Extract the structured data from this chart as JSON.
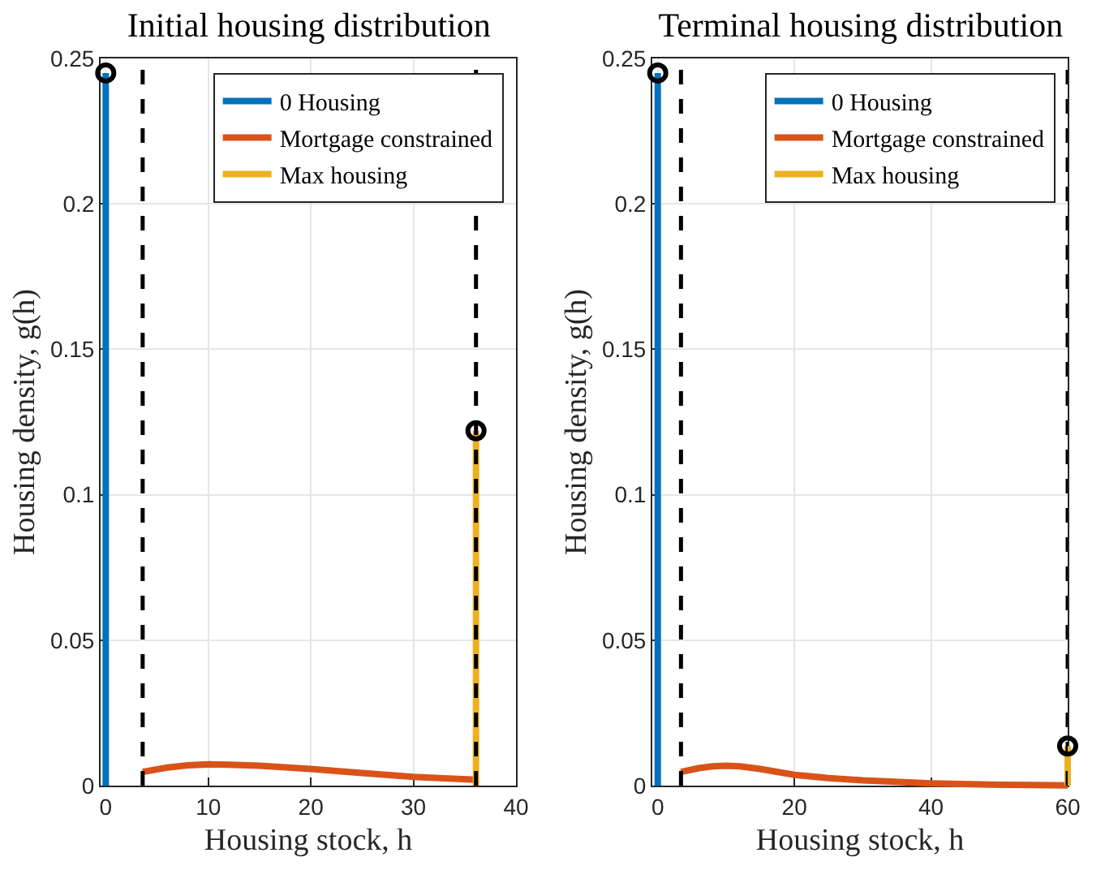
{
  "chart_data": [
    {
      "type": "line",
      "title": "Initial housing distribution",
      "xlabel": "Housing stock, h",
      "ylabel": "Housing density, g(h)",
      "xlim": [
        -0.5,
        40
      ],
      "xticks": [
        0,
        10,
        20,
        30,
        40
      ],
      "ylim": [
        0,
        0.25
      ],
      "yticks": [
        0,
        0.05,
        0.1,
        0.15,
        0.2,
        0.25
      ],
      "grid": true,
      "legend": "top right",
      "series": [
        {
          "name": "0 Housing",
          "color": "#0072bd",
          "type": "line",
          "marker": "none",
          "x": [
            0,
            0
          ],
          "values": [
            0,
            0.245
          ]
        },
        {
          "name": "Mortgage constrained",
          "color": "#d95319",
          "type": "line",
          "marker": "none",
          "x": [
            3.6,
            6,
            8,
            10,
            12,
            15,
            20,
            25,
            30,
            33,
            36.1
          ],
          "values": [
            0.0047,
            0.0062,
            0.007,
            0.0073,
            0.0072,
            0.0068,
            0.0057,
            0.0043,
            0.003,
            0.0025,
            0.002
          ]
        },
        {
          "name": "Max housing",
          "color": "#edb120",
          "type": "line",
          "marker": "none",
          "x": [
            36.1,
            36.1
          ],
          "values": [
            0,
            0.122
          ]
        },
        {
          "color": "#000000",
          "type": "scatter",
          "marker": "circle",
          "x": [
            0,
            36.1
          ],
          "values": [
            0.245,
            0.122
          ]
        }
      ],
      "ref_lines": [
        {
          "axis": "x",
          "value": 3.6,
          "color": "#000000",
          "line_style": "dashed"
        },
        {
          "axis": "x",
          "value": 36.1,
          "color": "#000000",
          "line_style": "dashed"
        }
      ]
    },
    {
      "type": "line",
      "title": "Terminal housing distribution",
      "xlabel": "Housing stock, h",
      "ylabel": "Housing density, g(h)",
      "xlim": [
        -0.8,
        60
      ],
      "xticks": [
        0,
        20,
        40,
        60
      ],
      "ylim": [
        0,
        0.25
      ],
      "yticks": [
        0,
        0.05,
        0.1,
        0.15,
        0.2,
        0.25
      ],
      "grid": true,
      "legend": "top right",
      "series": [
        {
          "name": "0 Housing",
          "color": "#0072bd",
          "type": "line",
          "marker": "none",
          "x": [
            0,
            0
          ],
          "values": [
            0,
            0.245
          ]
        },
        {
          "name": "Mortgage constrained",
          "color": "#d95319",
          "type": "line",
          "marker": "none",
          "x": [
            3.4,
            6,
            8,
            10,
            12,
            15,
            20,
            25,
            30,
            40,
            50,
            60
          ],
          "values": [
            0.0047,
            0.006,
            0.0066,
            0.0068,
            0.0066,
            0.0057,
            0.0037,
            0.0026,
            0.0018,
            0.0008,
            0.0003,
            0.0001
          ]
        },
        {
          "name": "Max housing",
          "color": "#edb120",
          "type": "line",
          "marker": "none",
          "x": [
            60,
            60
          ],
          "values": [
            0,
            0.0136
          ]
        },
        {
          "color": "#000000",
          "type": "scatter",
          "marker": "circle",
          "x": [
            0,
            60
          ],
          "values": [
            0.245,
            0.0136
          ]
        }
      ],
      "ref_lines": [
        {
          "axis": "x",
          "value": 3.4,
          "color": "#000000",
          "line_style": "dashed"
        },
        {
          "axis": "x",
          "value": 60,
          "color": "#000000",
          "line_style": "dashed"
        }
      ]
    }
  ]
}
